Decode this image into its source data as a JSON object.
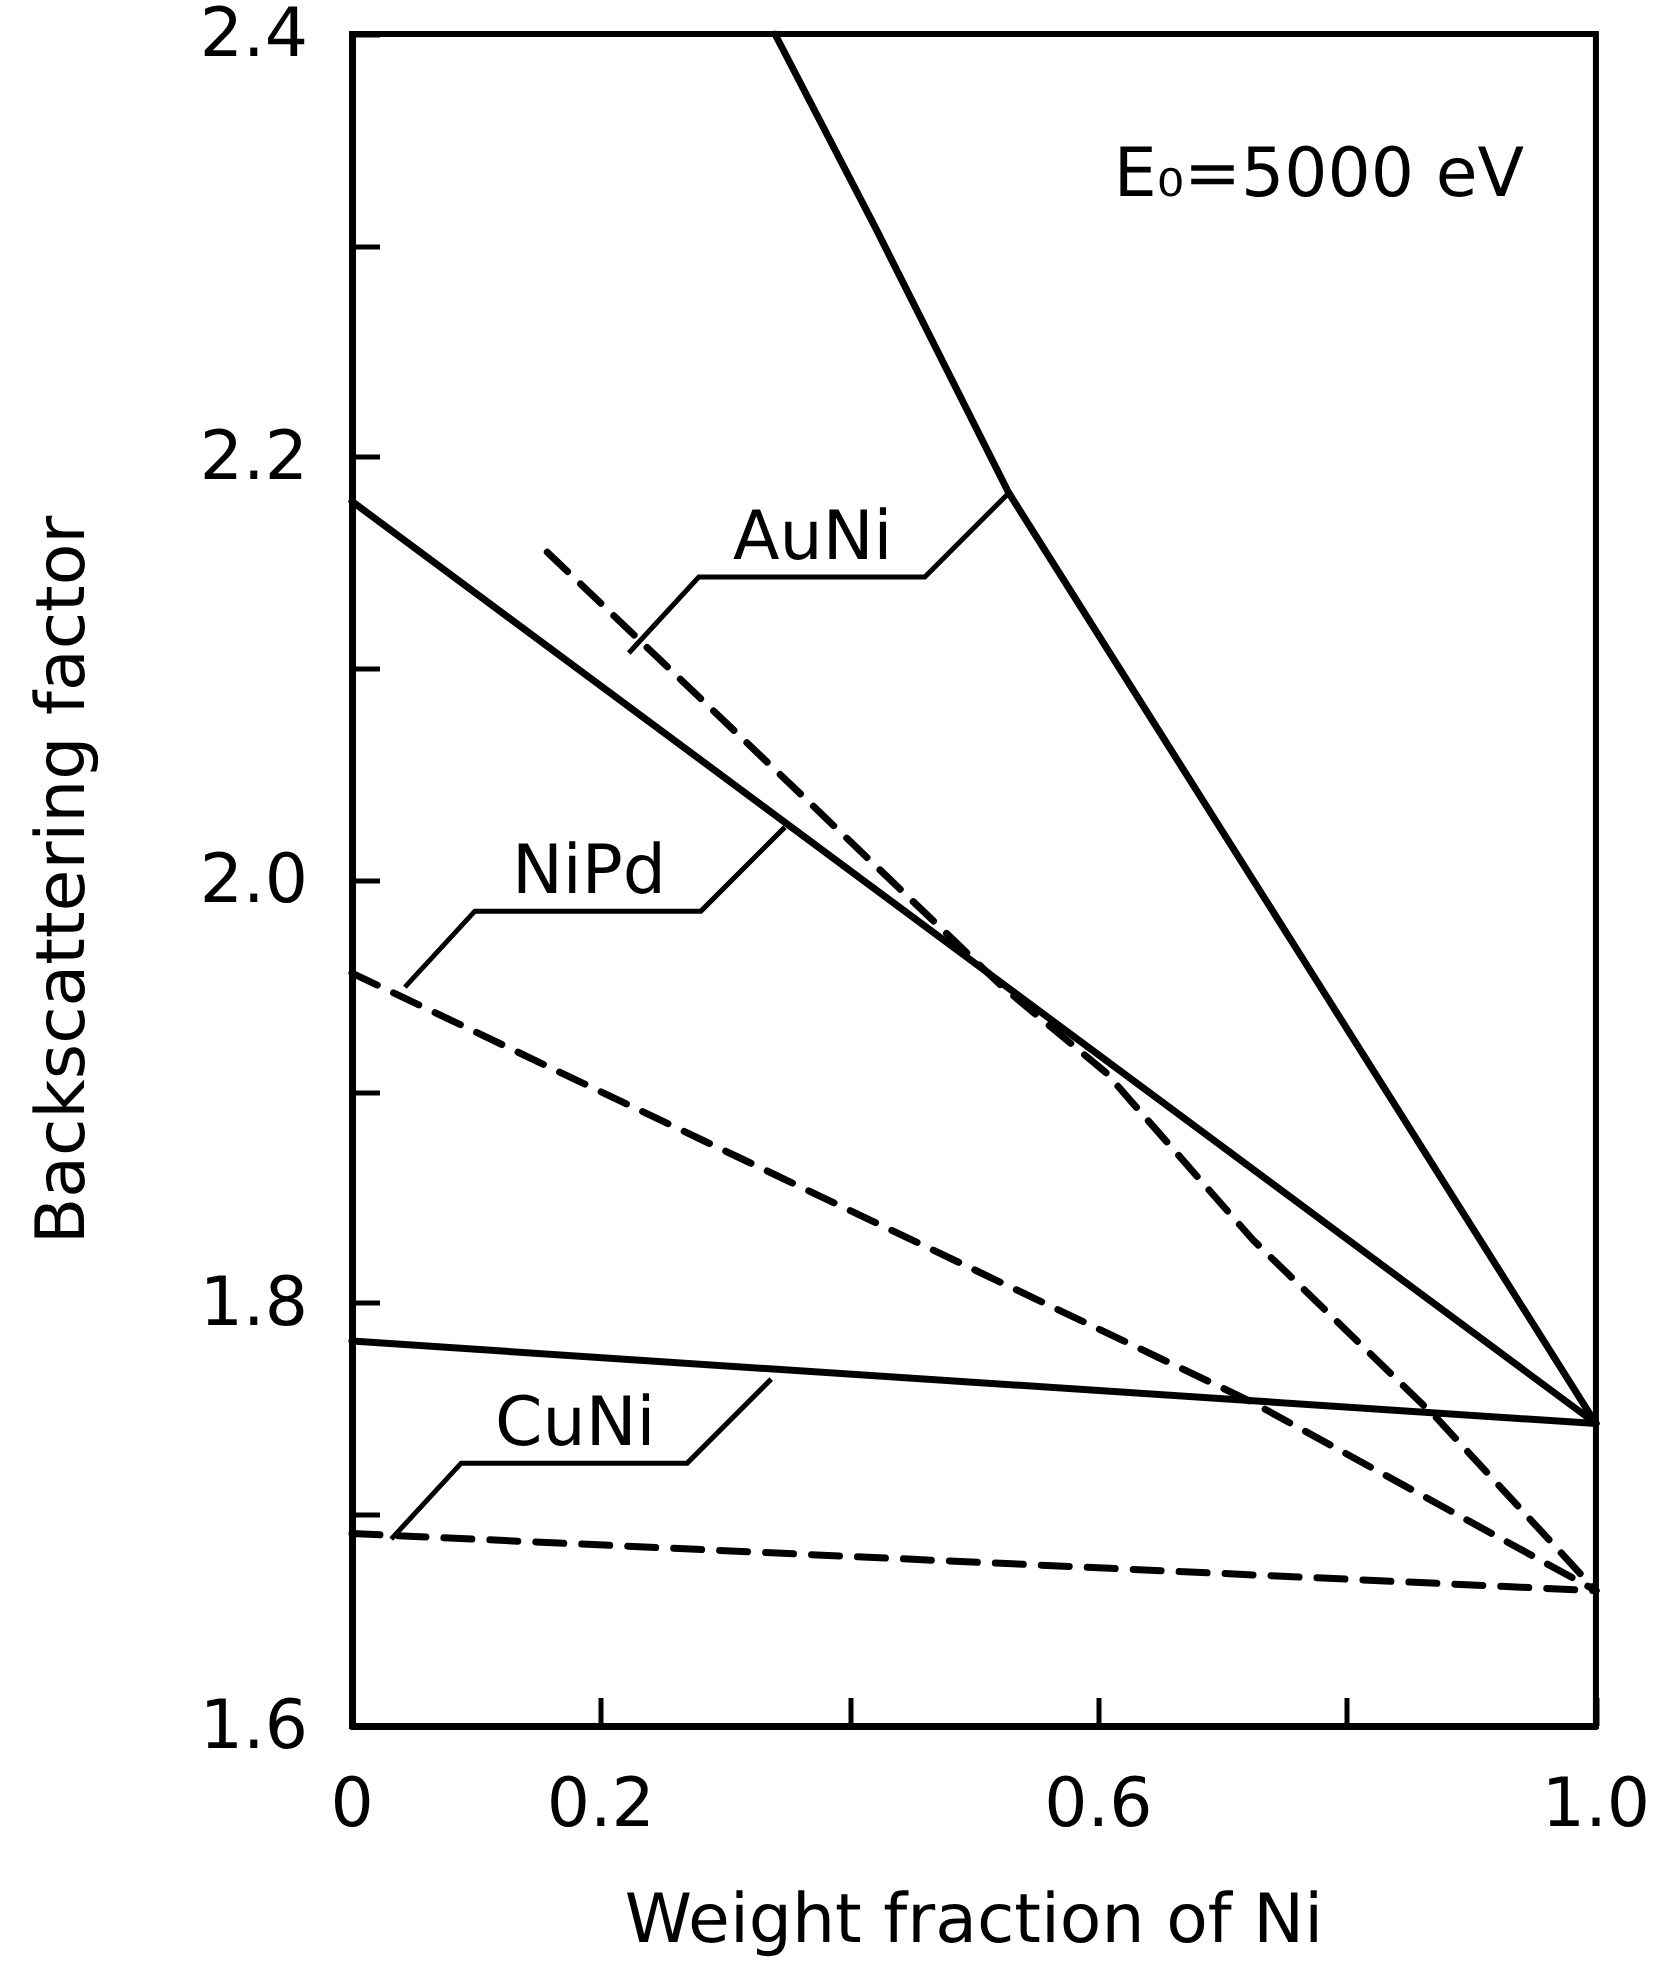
{
  "chart_data": {
    "type": "line",
    "xlabel": "Weight fraction of Ni",
    "ylabel": "Backscattering factor",
    "xlim": [
      0,
      1
    ],
    "xticks": [
      0,
      0.2,
      {
        "value": 0.4,
        "label": null
      },
      0.6,
      {
        "value": 0.8,
        "label": null
      },
      {
        "value": 1,
        "label": "1.0"
      }
    ],
    "ylim": [
      1.6,
      2.4
    ],
    "yticks": [
      1.6,
      {
        "value": 1.7,
        "label": null
      },
      1.8,
      {
        "value": 1.9,
        "label": null
      },
      {
        "value": 2,
        "label": "2.0"
      },
      {
        "value": 2.1,
        "label": null
      },
      2.2,
      {
        "value": 2.3,
        "label": null
      },
      2.4
    ],
    "grid": false,
    "marker": "none",
    "series": [
      {
        "color": "#000000",
        "line_style": "solid",
        "x": [
          0.34,
          0.422,
          0.528,
          0.778,
          1.0
        ],
        "values": [
          2.4,
          2.307,
          2.183,
          1.95,
          1.743
        ]
      },
      {
        "color": "#000000",
        "line_style": "dashed",
        "x": [
          0.157,
          0.522,
          0.606,
          0.724,
          0.873,
          1.0
        ],
        "values": [
          2.155,
          1.95,
          1.909,
          1.83,
          1.745,
          1.664
        ]
      },
      {
        "color": "#000000",
        "line_style": "solid",
        "x": [
          0,
          1.0
        ],
        "values": [
          2.179,
          1.743
        ]
      },
      {
        "color": "#000000",
        "line_style": "dashed",
        "x": [
          0,
          0.724,
          1.0
        ],
        "values": [
          1.956,
          1.753,
          1.664
        ]
      },
      {
        "color": "#000000",
        "line_style": "solid",
        "x": [
          0,
          1.0
        ],
        "values": [
          1.782,
          1.743
        ]
      },
      {
        "color": "#000000",
        "line_style": "dashed",
        "x": [
          0,
          1.0
        ],
        "values": [
          1.691,
          1.664
        ]
      }
    ],
    "annotations": [
      "E₀=5000 eV",
      {
        "text": "AuNi",
        "x": 0.528,
        "y": 2.183
      },
      {
        "text": "NiPd",
        "x": 0.348,
        "y": 2.025
      },
      {
        "text": "CuNi",
        "x": 0.337,
        "y": 1.764
      }
    ]
  }
}
